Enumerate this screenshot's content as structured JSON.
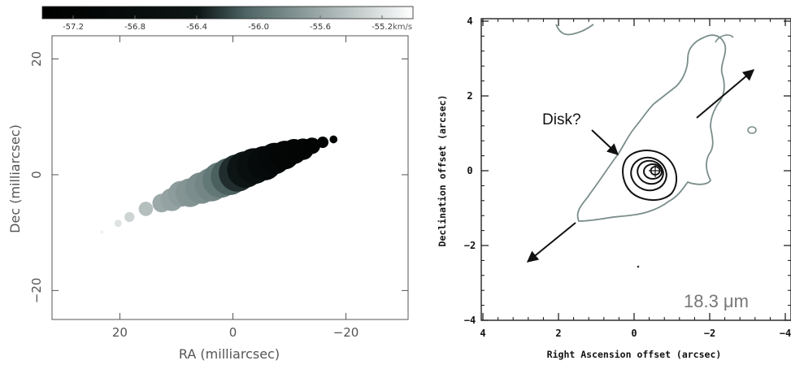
{
  "chart_data": [
    {
      "type": "scatter",
      "colorbar": {
        "ticks": [
          -57.2,
          -56.8,
          -56.4,
          -56.0,
          -55.6,
          -55.2
        ],
        "tick_labels": [
          "-57.2",
          "-56.8",
          "-56.4",
          "-56.0",
          "-55.6",
          "-55.2"
        ],
        "unit": "km/s",
        "range": [
          -57.4,
          -55.0
        ],
        "colormap": [
          "#000000",
          "#ffffff"
        ]
      },
      "xlabel": "RA (milliarcsec)",
      "ylabel": "Dec (milliarcsec)",
      "xlim": [
        32,
        -31
      ],
      "ylim": [
        -25,
        24
      ],
      "xticks": [
        20,
        0,
        -20
      ],
      "yticks": [
        20,
        0,
        -20
      ],
      "xtick_labels": [
        "20",
        "0",
        "−20"
      ],
      "ytick_labels": [
        "20",
        "0",
        "−20"
      ],
      "points": [
        {
          "x": 23.2,
          "y": -9.9,
          "size": 0.5,
          "v": -55.1
        },
        {
          "x": 20.3,
          "y": -8.4,
          "size": 1.0,
          "v": -55.2
        },
        {
          "x": 18.3,
          "y": -7.3,
          "size": 1.4,
          "v": -55.3
        },
        {
          "x": 15.4,
          "y": -5.9,
          "size": 2.0,
          "v": -55.45
        },
        {
          "x": 12.6,
          "y": -4.9,
          "size": 2.6,
          "v": -55.6
        },
        {
          "x": 10.8,
          "y": -4.3,
          "size": 3.2,
          "v": -55.65
        },
        {
          "x": 9.2,
          "y": -3.3,
          "size": 3.6,
          "v": -55.7
        },
        {
          "x": 7.6,
          "y": -3.1,
          "size": 4.0,
          "v": -55.75
        },
        {
          "x": 5.6,
          "y": -2.3,
          "size": 4.4,
          "v": -55.8
        },
        {
          "x": 3.8,
          "y": -1.7,
          "size": 4.7,
          "v": -55.85
        },
        {
          "x": 2.2,
          "y": -0.9,
          "size": 5.0,
          "v": -55.95
        },
        {
          "x": 0.6,
          "y": -0.3,
          "size": 5.2,
          "v": -56.1
        },
        {
          "x": -0.8,
          "y": 0.3,
          "size": 5.2,
          "v": -56.3
        },
        {
          "x": -2.2,
          "y": 0.9,
          "size": 5.1,
          "v": -56.45
        },
        {
          "x": -3.8,
          "y": 1.5,
          "size": 5.0,
          "v": -56.7
        },
        {
          "x": -5.6,
          "y": 2.0,
          "size": 4.8,
          "v": -56.9
        },
        {
          "x": -7.4,
          "y": 2.8,
          "size": 4.4,
          "v": -57.0
        },
        {
          "x": -9.2,
          "y": 3.4,
          "size": 4.0,
          "v": -57.1
        },
        {
          "x": -10.8,
          "y": 4.0,
          "size": 3.5,
          "v": -57.15
        },
        {
          "x": -12.4,
          "y": 4.4,
          "size": 3.0,
          "v": -57.2
        },
        {
          "x": -14.0,
          "y": 5.0,
          "size": 2.3,
          "v": -57.25
        },
        {
          "x": -15.9,
          "y": 5.6,
          "size": 1.6,
          "v": -57.3
        },
        {
          "x": -17.8,
          "y": 6.1,
          "size": 1.1,
          "v": -57.3
        }
      ]
    },
    {
      "type": "contour",
      "xlabel": "Right Ascension offset (arcsec)",
      "ylabel": "Declination offset (arcsec)",
      "xlim": [
        4,
        -4
      ],
      "ylim": [
        -4,
        4
      ],
      "xticks": [
        4,
        2,
        0,
        -2,
        -4
      ],
      "yticks": [
        -4,
        -2,
        0,
        2,
        4
      ],
      "xtick_labels": [
        "4",
        "2",
        "0",
        "−2",
        "−4"
      ],
      "ytick_labels": [
        "−4",
        "−2",
        "0",
        "2",
        "4"
      ],
      "annotation_disk": "Disk?",
      "wavelength_label": "18.3 μm",
      "colors": {
        "outer_contour": "#7a8e8c",
        "inner_contour": "#111111"
      }
    }
  ]
}
